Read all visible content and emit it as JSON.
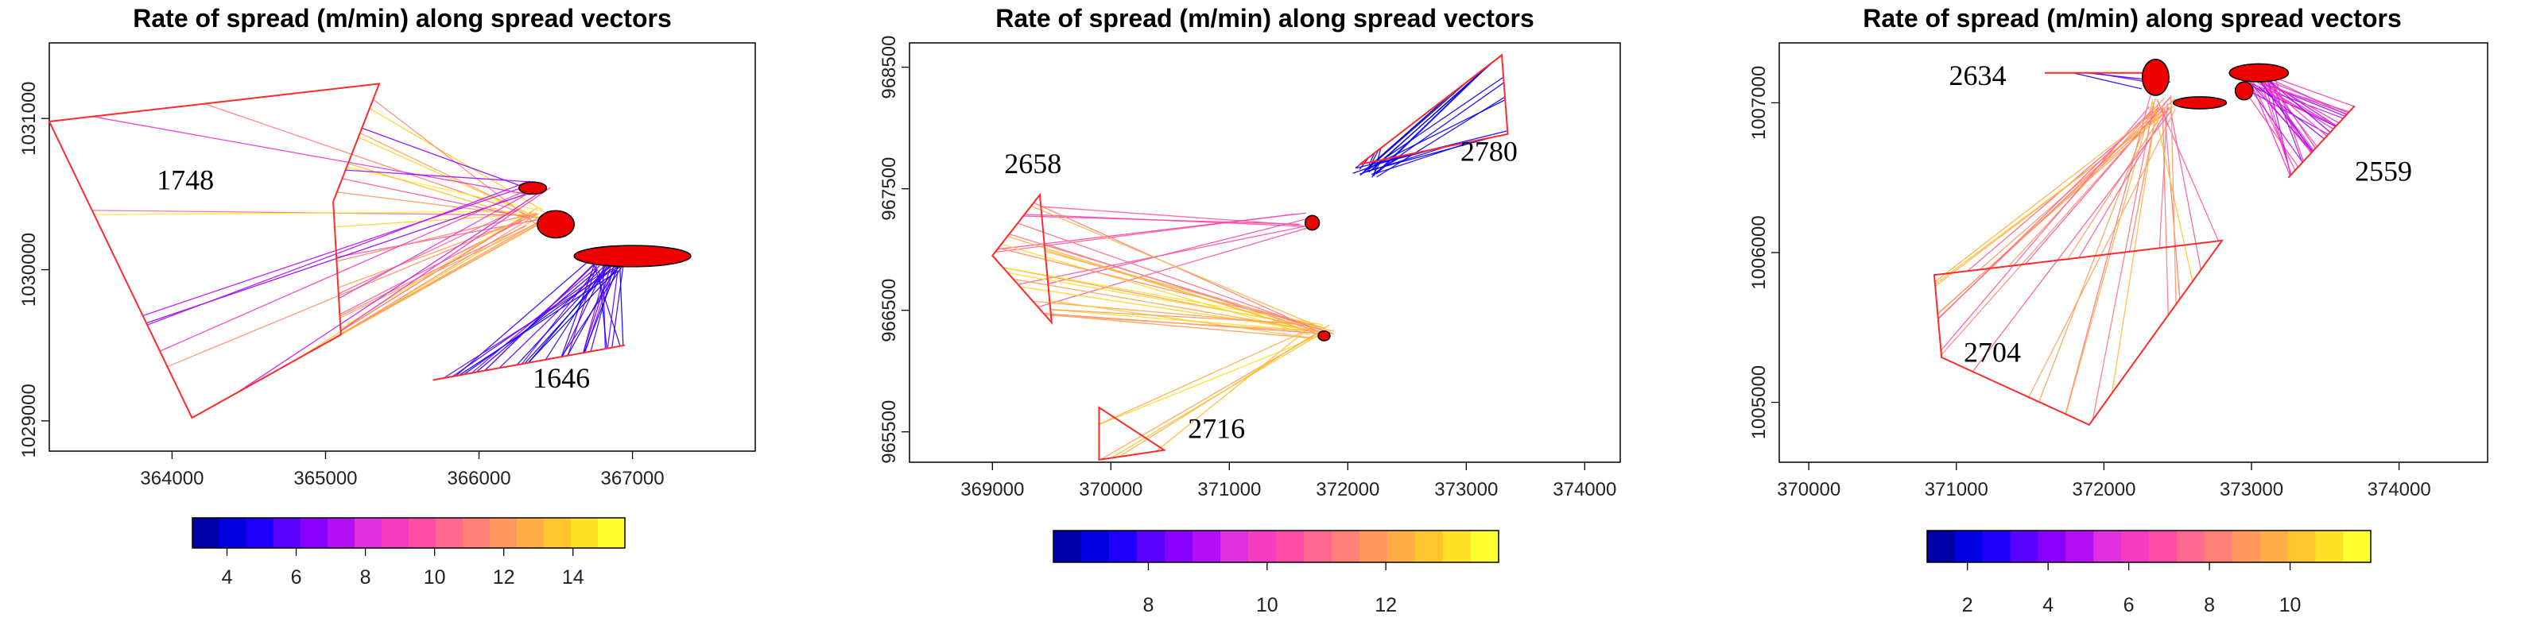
{
  "chart_data": [
    {
      "type": "spread-vector-map",
      "title": "Rate of spread (m/min) along spread vectors",
      "x_ticks": [
        "364000",
        "365000",
        "366000",
        "367000"
      ],
      "y_ticks": [
        "1029000",
        "1030000",
        "1031000"
      ],
      "xlim": [
        363200,
        367800
      ],
      "ylim": [
        1028800,
        1031500
      ],
      "annotations": [
        {
          "text": "1748",
          "x": 363900,
          "y": 1030530
        },
        {
          "text": "1646",
          "x": 366350,
          "y": 1029220
        }
      ],
      "colorbar": {
        "min": 3,
        "max": 15.5,
        "ticks": [
          "4",
          "6",
          "8",
          "10",
          "12",
          "14"
        ],
        "tick_values": [
          4,
          6,
          8,
          10,
          12,
          14
        ]
      },
      "polygons": [
        {
          "name": "perimeter-1748",
          "points": [
            [
              363200,
              1030980
            ],
            [
              365350,
              1031230
            ],
            [
              365050,
              1030450
            ],
            [
              365100,
              1029570
            ],
            [
              364130,
              1029020
            ]
          ]
        },
        {
          "name": "perimeter-1646",
          "points": [
            [
              365700,
              1029270
            ],
            [
              366950,
              1029500
            ]
          ]
        }
      ],
      "burned": [
        {
          "x": 366350,
          "y": 1030540,
          "rx": 90,
          "ry": 40
        },
        {
          "x": 366500,
          "y": 1030300,
          "rx": 120,
          "ry": 90
        },
        {
          "x": 367000,
          "y": 1030090,
          "rx": 380,
          "ry": 70
        }
      ],
      "vector_groups": [
        {
          "origins_from": 0,
          "target": [
            366350,
            1030350
          ],
          "count": 28,
          "rate_range": [
            10,
            15
          ]
        },
        {
          "origins_from": 0,
          "target": [
            366420,
            1030540
          ],
          "count": 10,
          "rate_range": [
            6,
            9
          ]
        },
        {
          "origins_from": 1,
          "target": [
            366850,
            1030050
          ],
          "count": 32,
          "rate_range": [
            3.5,
            7
          ]
        }
      ]
    },
    {
      "type": "spread-vector-map",
      "title": "Rate of spread (m/min) along spread vectors",
      "x_ticks": [
        "369000",
        "370000",
        "371000",
        "372000",
        "373000",
        "374000"
      ],
      "y_ticks": [
        "965500",
        "966500",
        "967500",
        "968500"
      ],
      "xlim": [
        368300,
        374300
      ],
      "ylim": [
        965250,
        968700
      ],
      "annotations": [
        {
          "text": "2658",
          "x": 369100,
          "y": 967630
        },
        {
          "text": "2716",
          "x": 370650,
          "y": 965450
        },
        {
          "text": "2780",
          "x": 372950,
          "y": 967730
        }
      ],
      "colorbar": {
        "min": 6.4,
        "max": 13.9,
        "ticks": [
          "8",
          "10",
          "12"
        ],
        "tick_values": [
          8,
          10,
          12
        ]
      },
      "polygons": [
        {
          "name": "perimeter-2658",
          "points": [
            [
              369400,
              967450
            ],
            [
              369500,
              966400
            ],
            [
              369000,
              966950
            ]
          ]
        },
        {
          "name": "perimeter-2716",
          "points": [
            [
              369900,
              965700
            ],
            [
              369900,
              965270
            ],
            [
              370450,
              965350
            ]
          ]
        },
        {
          "name": "perimeter-2780",
          "points": [
            [
              373300,
              968600
            ],
            [
              373350,
              967950
            ],
            [
              372100,
              967700
            ]
          ]
        }
      ],
      "burned": [
        {
          "x": 371700,
          "y": 967220,
          "rx": 60,
          "ry": 60
        },
        {
          "x": 371800,
          "y": 966290,
          "rx": 50,
          "ry": 40
        }
      ],
      "vector_groups": [
        {
          "origins_from": 0,
          "target": [
            371650,
            967250
          ],
          "count": 8,
          "rate_range": [
            10,
            12
          ]
        },
        {
          "origins_from": 0,
          "target": [
            371780,
            966330
          ],
          "count": 22,
          "rate_range": [
            11,
            13.5
          ]
        },
        {
          "origins_from": 1,
          "target": [
            371780,
            966330
          ],
          "count": 6,
          "rate_range": [
            12,
            13.5
          ]
        },
        {
          "origins_from": 2,
          "target": [
            372150,
            967650
          ],
          "count": 24,
          "rate_range": [
            6.5,
            7.5
          ]
        }
      ]
    },
    {
      "type": "spread-vector-map",
      "title": "Rate of spread (m/min) along spread vectors",
      "x_ticks": [
        "370000",
        "371000",
        "372000",
        "373000",
        "374000"
      ],
      "y_ticks": [
        "1005000",
        "1006000",
        "1007000"
      ],
      "xlim": [
        369800,
        374600
      ],
      "ylim": [
        1004600,
        1007400
      ],
      "annotations": [
        {
          "text": "2634",
          "x": 370950,
          "y": 1007120
        },
        {
          "text": "2704",
          "x": 371050,
          "y": 1005270
        },
        {
          "text": "2559",
          "x": 373700,
          "y": 1006480
        }
      ],
      "colorbar": {
        "min": 1,
        "max": 12,
        "ticks": [
          "2",
          "4",
          "6",
          "8",
          "10"
        ],
        "tick_values": [
          2,
          4,
          6,
          8,
          10
        ]
      },
      "polygons": [
        {
          "name": "perimeter-2704",
          "points": [
            [
              370850,
              1005850
            ],
            [
              370900,
              1005300
            ],
            [
              371900,
              1004850
            ],
            [
              372800,
              1006080
            ]
          ]
        },
        {
          "name": "perimeter-2634",
          "points": [
            [
              371600,
              1007200
            ],
            [
              372300,
              1007200
            ]
          ]
        },
        {
          "name": "perimeter-2559",
          "points": [
            [
              373700,
              1006980
            ],
            [
              373250,
              1006500
            ]
          ]
        }
      ],
      "burned": [
        {
          "x": 372350,
          "y": 1007170,
          "rx": 90,
          "ry": 120
        },
        {
          "x": 372650,
          "y": 1007000,
          "rx": 180,
          "ry": 40
        },
        {
          "x": 373050,
          "y": 1007200,
          "rx": 200,
          "ry": 60
        },
        {
          "x": 372950,
          "y": 1007080,
          "rx": 60,
          "ry": 60
        }
      ],
      "vector_groups": [
        {
          "origins_from": 0,
          "target": [
            372400,
            1007000
          ],
          "count": 30,
          "rate_range": [
            7,
            11
          ]
        },
        {
          "origins_from": 1,
          "target": [
            372350,
            1007150
          ],
          "count": 3,
          "rate_range": [
            2,
            4
          ]
        },
        {
          "origins_from": 2,
          "target": [
            373050,
            1007150
          ],
          "count": 34,
          "rate_range": [
            4,
            7
          ]
        }
      ]
    }
  ]
}
